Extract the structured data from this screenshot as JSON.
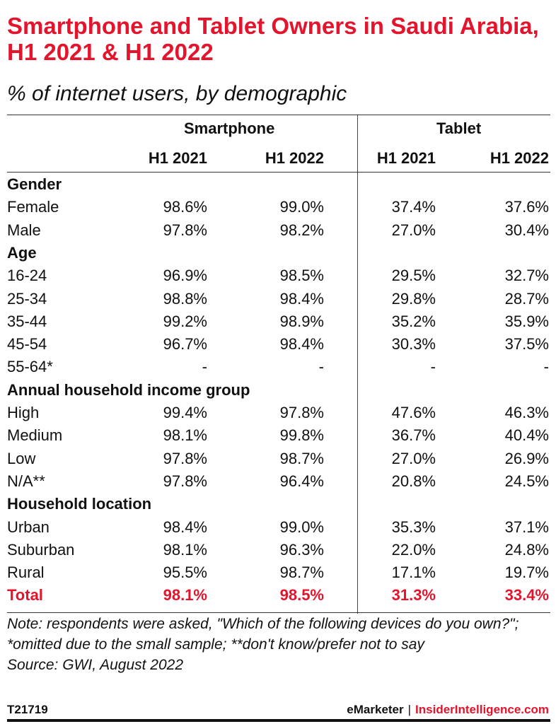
{
  "title": "Smartphone and Tablet Owners in Saudi Arabia, H1 2021 & H1 2022",
  "subtitle": "% of internet users, by demographic",
  "chart_data": {
    "type": "table",
    "column_groups": [
      "Smartphone",
      "Tablet"
    ],
    "columns": [
      "H1 2021",
      "H1 2022",
      "H1 2021",
      "H1 2022"
    ],
    "sections": [
      {
        "label": "Gender",
        "rows": [
          {
            "label": "Female",
            "values": [
              "98.6%",
              "99.0%",
              "37.4%",
              "37.6%"
            ]
          },
          {
            "label": "Male",
            "values": [
              "97.8%",
              "98.2%",
              "27.0%",
              "30.4%"
            ]
          }
        ]
      },
      {
        "label": "Age",
        "rows": [
          {
            "label": "16-24",
            "values": [
              "96.9%",
              "98.5%",
              "29.5%",
              "32.7%"
            ]
          },
          {
            "label": "25-34",
            "values": [
              "98.8%",
              "98.4%",
              "29.8%",
              "28.7%"
            ]
          },
          {
            "label": "35-44",
            "values": [
              "99.2%",
              "98.9%",
              "35.2%",
              "35.9%"
            ]
          },
          {
            "label": "45-54",
            "values": [
              "96.7%",
              "98.4%",
              "30.3%",
              "37.5%"
            ]
          },
          {
            "label": "55-64*",
            "values": [
              "-",
              "-",
              "-",
              "-"
            ]
          }
        ]
      },
      {
        "label": "Annual household income group",
        "rows": [
          {
            "label": "High",
            "values": [
              "99.4%",
              "97.8%",
              "47.6%",
              "46.3%"
            ]
          },
          {
            "label": "Medium",
            "values": [
              "98.1%",
              "99.8%",
              "36.7%",
              "40.4%"
            ]
          },
          {
            "label": "Low",
            "values": [
              "97.8%",
              "98.7%",
              "27.0%",
              "26.9%"
            ]
          },
          {
            "label": "N/A**",
            "values": [
              "97.8%",
              "96.4%",
              "20.8%",
              "24.5%"
            ]
          }
        ]
      },
      {
        "label": "Household location",
        "rows": [
          {
            "label": "Urban",
            "values": [
              "98.4%",
              "99.0%",
              "35.3%",
              "37.1%"
            ]
          },
          {
            "label": "Suburban",
            "values": [
              "98.1%",
              "96.3%",
              "22.0%",
              "24.8%"
            ]
          },
          {
            "label": "Rural",
            "values": [
              "95.5%",
              "98.7%",
              "17.1%",
              "19.7%"
            ]
          }
        ]
      }
    ],
    "total": {
      "label": "Total",
      "values": [
        "98.1%",
        "98.5%",
        "31.3%",
        "33.4%"
      ]
    }
  },
  "note": "Note: respondents were asked, \"Which of the following devices do you own?\"; *omitted due to the small sample; **don't know/prefer not to say",
  "source": "Source: GWI, August 2022",
  "footer": {
    "chart_id": "T21719",
    "brand1": "eMarketer",
    "separator": "|",
    "brand2": "InsiderIntelligence.com"
  },
  "colors": {
    "accent": "#e4142c",
    "text": "#111111"
  }
}
